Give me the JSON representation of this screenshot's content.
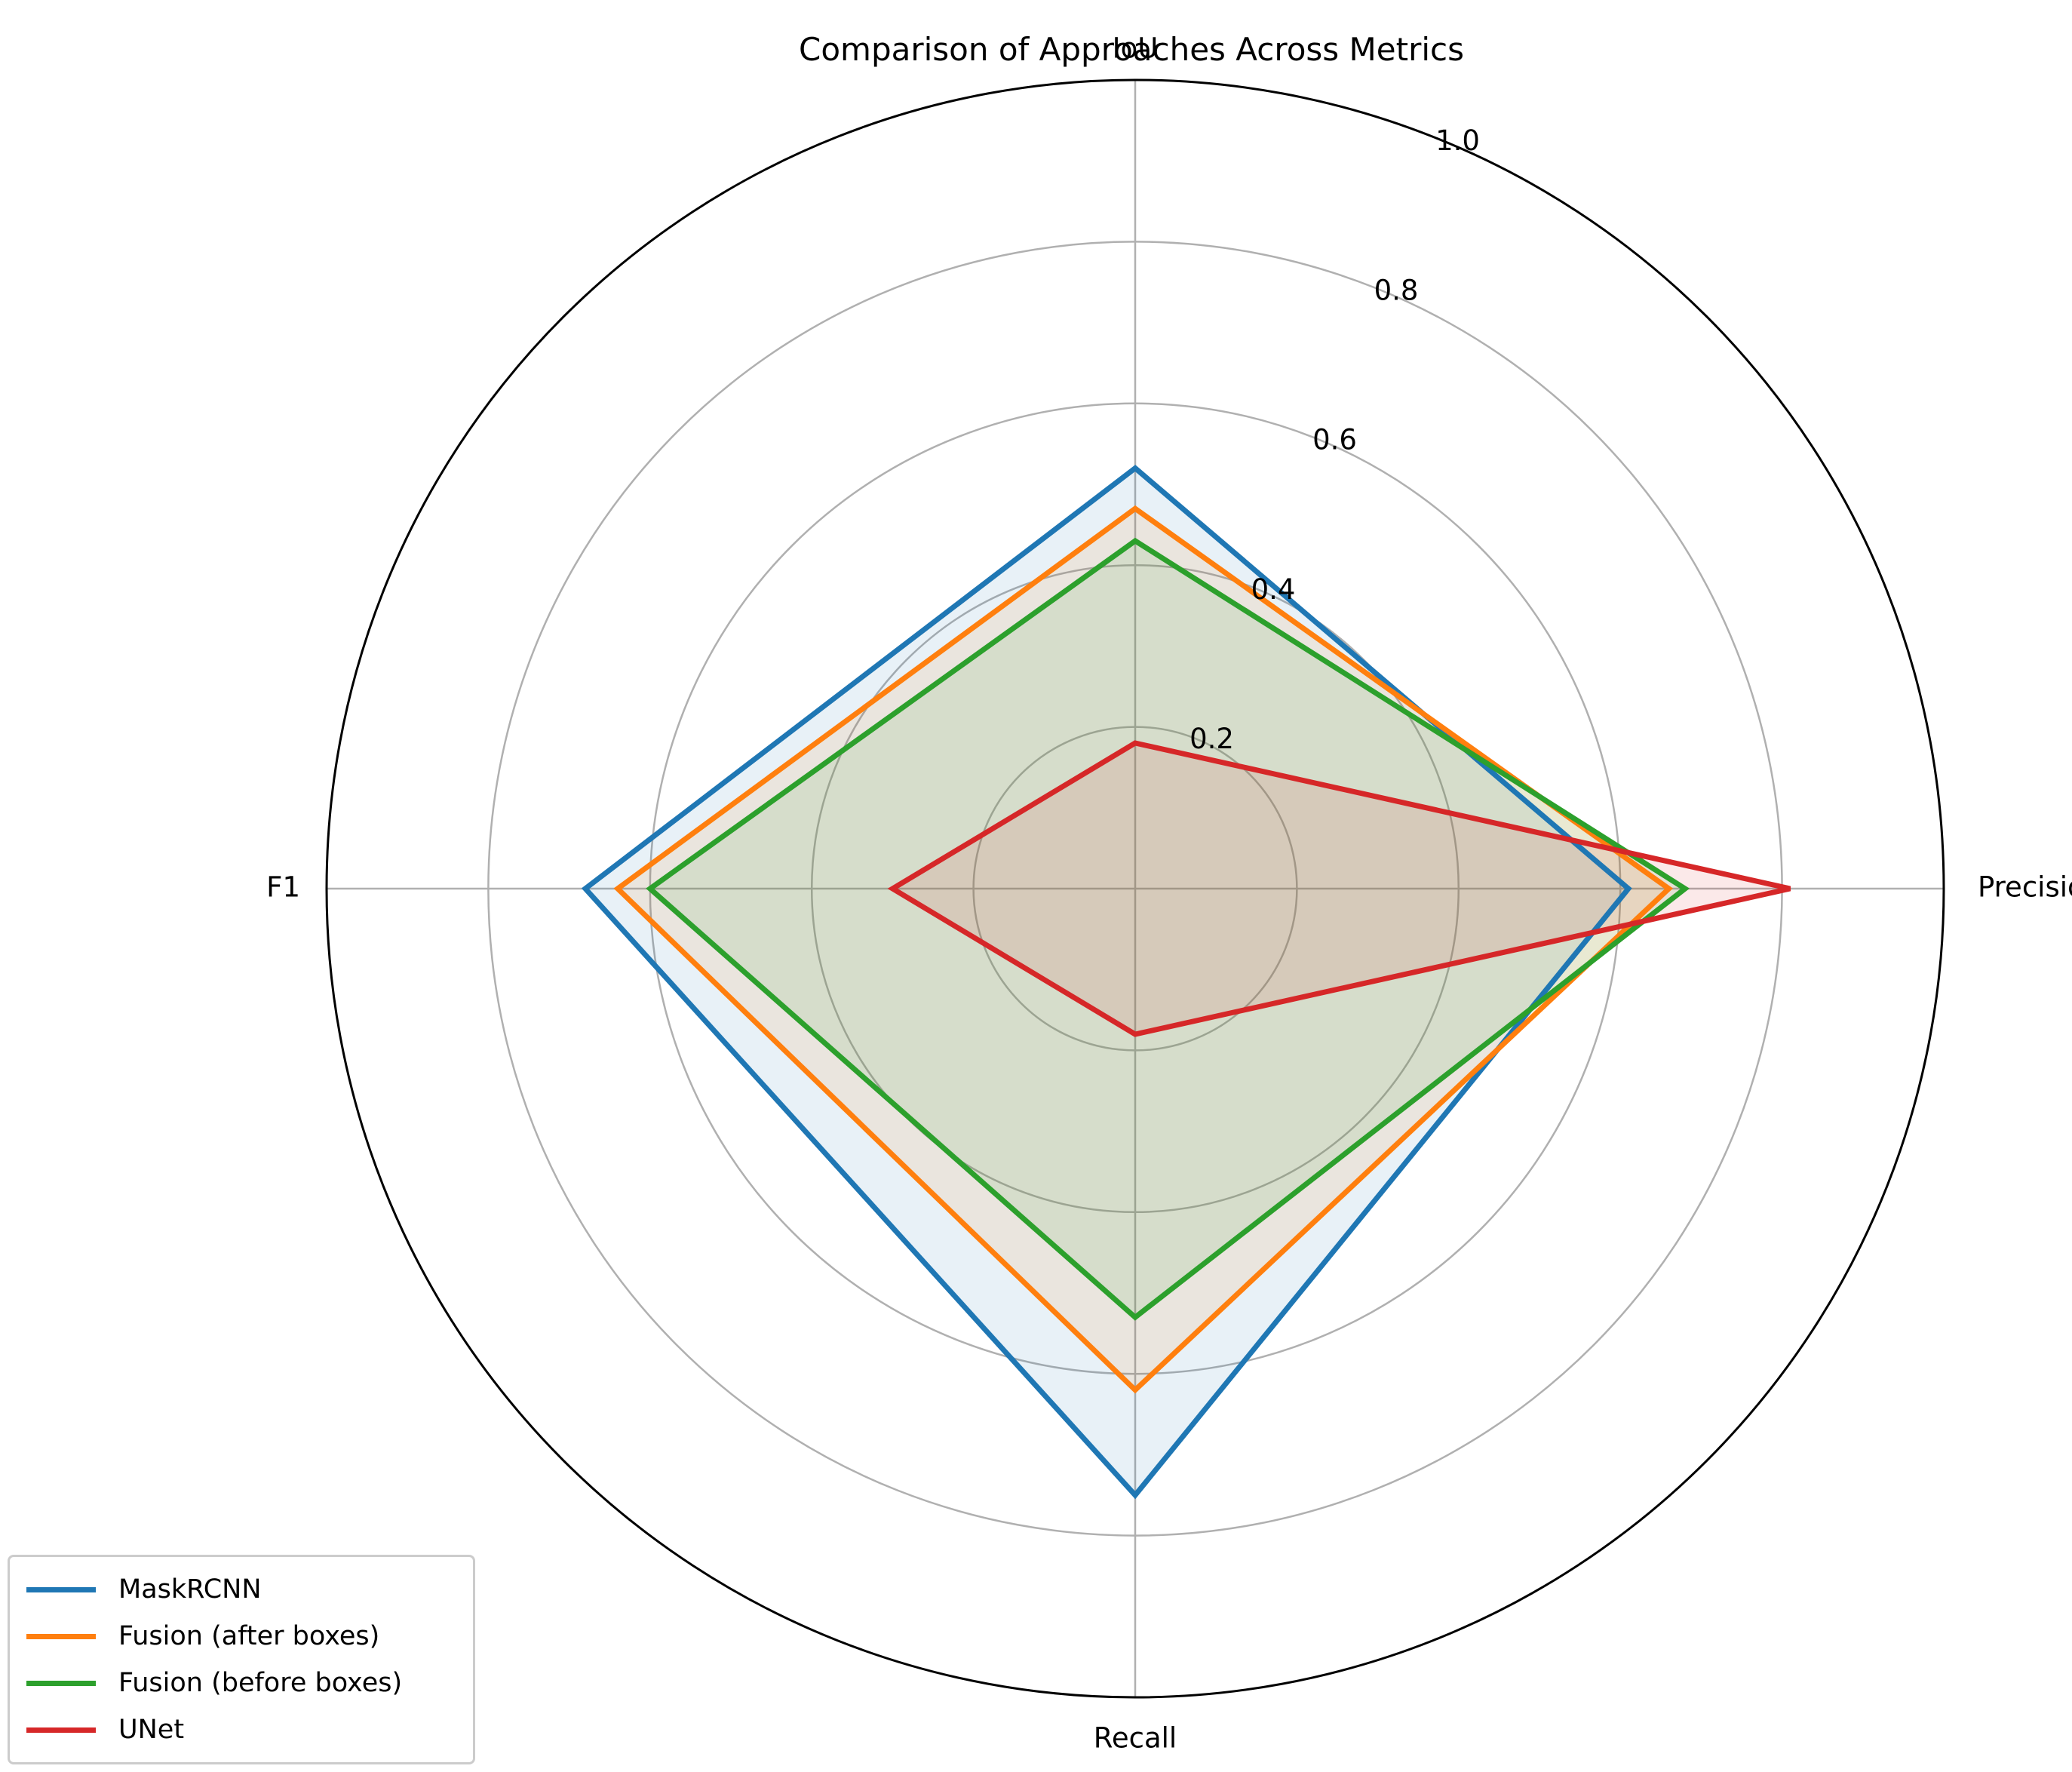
{
  "chart_data": {
    "type": "radar",
    "title": "Comparison of Approaches Across Metrics",
    "axes": [
      "IoU",
      "Precision",
      "Recall",
      "F1"
    ],
    "rlim": [
      0,
      1.0
    ],
    "rticks": [
      0.2,
      0.4,
      0.6,
      0.8,
      1.0
    ],
    "rtick_labels": [
      "0.2",
      "0.4",
      "0.6",
      "0.8",
      "1.0"
    ],
    "grid": true,
    "legend_position": "bottom-left",
    "series": [
      {
        "name": "MaskRCNN",
        "color": "#1f77b4",
        "values": [
          0.52,
          0.61,
          0.75,
          0.68
        ]
      },
      {
        "name": "Fusion (after boxes)",
        "color": "#ff7f0e",
        "values": [
          0.47,
          0.66,
          0.62,
          0.64
        ]
      },
      {
        "name": "Fusion (before boxes)",
        "color": "#2ca02c",
        "values": [
          0.43,
          0.68,
          0.53,
          0.6
        ]
      },
      {
        "name": "UNet",
        "color": "#d62728",
        "values": [
          0.18,
          0.81,
          0.18,
          0.3
        ]
      }
    ]
  }
}
